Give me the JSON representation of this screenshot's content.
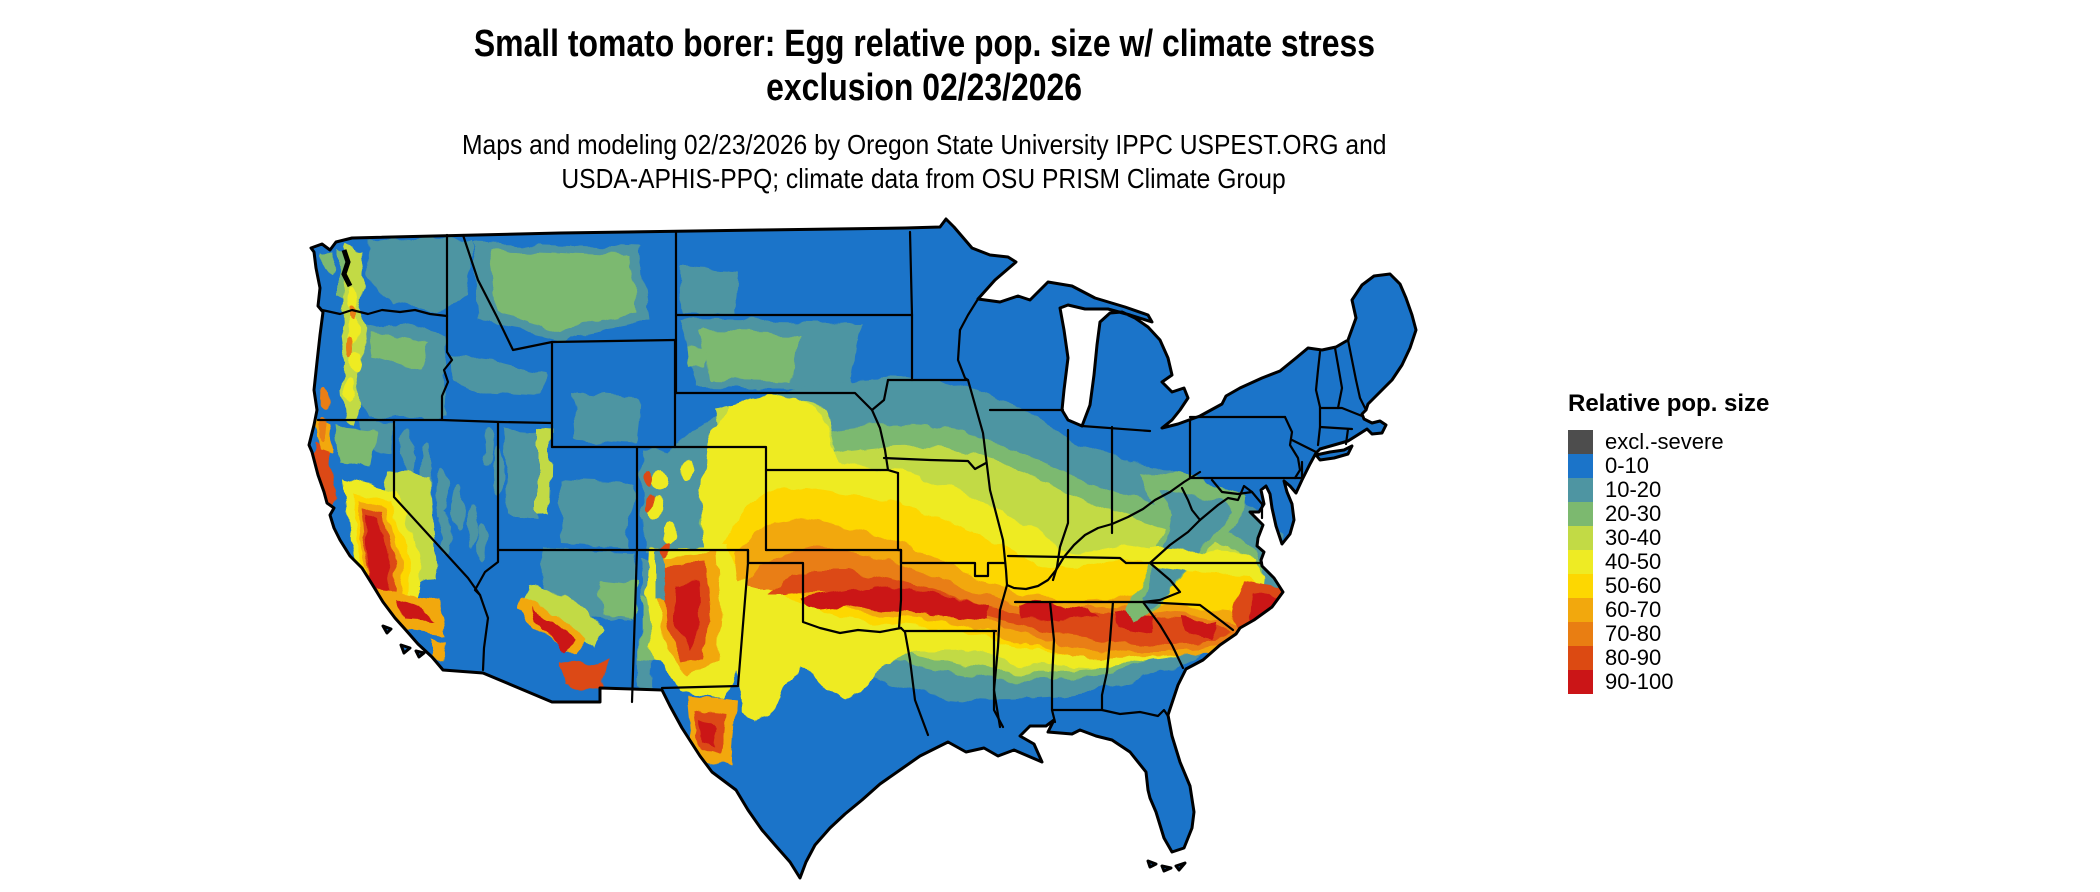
{
  "title": {
    "line1": "Small tomato borer: Egg relative pop. size w/ climate stress",
    "line2": "exclusion 02/23/2026"
  },
  "subtitle": {
    "line1": "Maps and modeling 02/23/2026 by Oregon State University IPPC USPEST.ORG and",
    "line2": "USDA-APHIS-PPQ; climate data from OSU PRISM Climate Group"
  },
  "legend": {
    "title": "Relative pop. size",
    "items": [
      {
        "label": "excl.-severe",
        "color": "#4d4d4d"
      },
      {
        "label": "0-10",
        "color": "#1b74c9"
      },
      {
        "label": "10-20",
        "color": "#4e95a2"
      },
      {
        "label": "20-30",
        "color": "#7cb96f"
      },
      {
        "label": "30-40",
        "color": "#c2da45"
      },
      {
        "label": "40-50",
        "color": "#eeeb24"
      },
      {
        "label": "50-60",
        "color": "#fdd701"
      },
      {
        "label": "60-70",
        "color": "#f2a80d"
      },
      {
        "label": "70-80",
        "color": "#e97e12"
      },
      {
        "label": "80-90",
        "color": "#dc4a12"
      },
      {
        "label": "90-100",
        "color": "#cb1517"
      }
    ]
  },
  "map": {
    "region": "Contiguous United States",
    "border_color": "#000000",
    "background": "#ffffff"
  }
}
